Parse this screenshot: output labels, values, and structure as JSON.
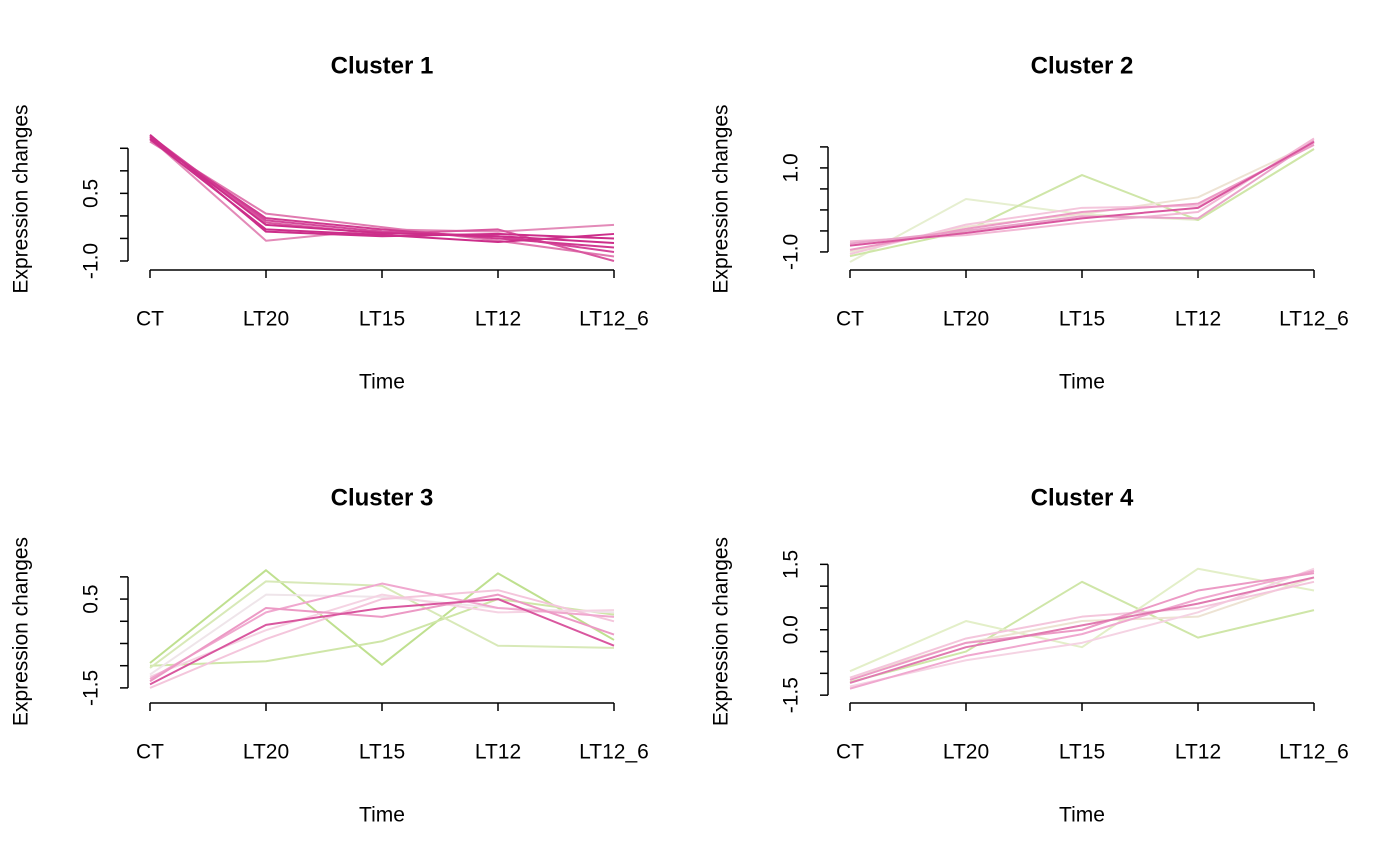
{
  "chart_data": [
    {
      "type": "line",
      "title": "Cluster 1",
      "xlabel": "Time",
      "ylabel": "Expression changes",
      "categories": [
        "CT",
        "LT20",
        "LT15",
        "LT12",
        "LT12_6"
      ],
      "ylim": [
        -1.2,
        1.95
      ],
      "yticks": [
        {
          "value": -1,
          "label": "-1.0"
        },
        0.5
      ],
      "yminor": [
        -0.5,
        0,
        1,
        1.5
      ],
      "series": [
        {
          "color": "#e38ab8",
          "values": [
            1.72,
            -0.55,
            -0.3,
            -0.35,
            -0.2
          ]
        },
        {
          "color": "#e07ab0",
          "values": [
            1.65,
            0.05,
            -0.25,
            -0.55,
            -0.9
          ]
        },
        {
          "color": "#d9579f",
          "values": [
            1.78,
            -0.15,
            -0.4,
            -0.3,
            -1.0
          ]
        },
        {
          "color": "#d4479a",
          "values": [
            1.75,
            -0.1,
            -0.35,
            -0.45,
            -0.8
          ]
        },
        {
          "color": "#d03a90",
          "values": [
            1.7,
            -0.05,
            -0.3,
            -0.5,
            -0.7
          ]
        },
        {
          "color": "#cc2e8a",
          "values": [
            1.8,
            -0.35,
            -0.45,
            -0.4,
            -0.5
          ]
        },
        {
          "color": "#cc2e8a",
          "values": [
            1.7,
            -0.3,
            -0.42,
            -0.58,
            -0.4
          ]
        },
        {
          "color": "#cc2e8a",
          "values": [
            1.75,
            -0.2,
            -0.38,
            -0.45,
            -0.6
          ]
        }
      ]
    },
    {
      "type": "line",
      "title": "Cluster 2",
      "xlabel": "Time",
      "ylabel": "Expression changes",
      "categories": [
        "CT",
        "LT20",
        "LT15",
        "LT12",
        "LT12_6"
      ],
      "ylim": [
        -1.43,
        1.95
      ],
      "yticks": [
        {
          "value": -1,
          "label": "-1.0"
        },
        {
          "value": 1,
          "label": "1.0"
        }
      ],
      "yminor": [
        -0.5,
        0,
        0.5,
        1.5
      ],
      "series": [
        {
          "color": "#e6efd0",
          "values": [
            -1.24,
            0.26,
            -0.1,
            -0.24,
            1.45
          ]
        },
        {
          "color": "#cfe6a8",
          "values": [
            -1.1,
            -0.5,
            0.83,
            -0.24,
            1.45
          ]
        },
        {
          "color": "#ede3d3",
          "values": [
            -1.0,
            -0.4,
            -0.1,
            0.3,
            1.6
          ]
        },
        {
          "color": "#f4c6dc",
          "values": [
            -1.05,
            -0.35,
            0.05,
            0.1,
            1.6
          ]
        },
        {
          "color": "#f2b8d5",
          "values": [
            -0.75,
            -0.6,
            -0.3,
            -0.05,
            1.7
          ]
        },
        {
          "color": "#e9a3c9",
          "values": [
            -0.8,
            -0.5,
            -0.15,
            -0.2,
            1.65
          ]
        },
        {
          "color": "#ec9ac5",
          "values": [
            -0.95,
            -0.45,
            -0.05,
            0.15,
            1.55
          ]
        },
        {
          "color": "#d9579f",
          "values": [
            -0.85,
            -0.55,
            -0.2,
            0.05,
            1.62
          ]
        }
      ]
    },
    {
      "type": "line",
      "title": "Cluster 3",
      "xlabel": "Time",
      "ylabel": "Expression changes",
      "categories": [
        "CT",
        "LT20",
        "LT15",
        "LT12",
        "LT12_6"
      ],
      "ylim": [
        -1.84,
        1.38
      ],
      "yticks": [
        -1.5,
        0.5
      ],
      "yminor": [
        -1,
        -0.5,
        0,
        1
      ],
      "series": [
        {
          "color": "#bfe08f",
          "values": [
            -0.94,
            1.15,
            -0.98,
            1.08,
            -0.42
          ]
        },
        {
          "color": "#cfe6a8",
          "values": [
            -1.0,
            -0.9,
            -0.45,
            0.5,
            0.15
          ]
        },
        {
          "color": "#d8e9b8",
          "values": [
            -1.05,
            0.9,
            0.8,
            -0.55,
            -0.6
          ]
        },
        {
          "color": "#efe5ea",
          "values": [
            -1.2,
            0.6,
            0.55,
            0.3,
            0.2
          ]
        },
        {
          "color": "#f5d3e3",
          "values": [
            -1.25,
            -0.2,
            0.6,
            0.2,
            0.25
          ]
        },
        {
          "color": "#f4c6dc",
          "values": [
            -1.5,
            -0.4,
            0.5,
            0.7,
            0.0
          ]
        },
        {
          "color": "#f0a8cf",
          "values": [
            -1.3,
            0.2,
            0.85,
            0.3,
            0.1
          ]
        },
        {
          "color": "#ec9ac5",
          "values": [
            -1.35,
            0.3,
            0.1,
            0.6,
            -0.3
          ]
        },
        {
          "color": "#d9579f",
          "values": [
            -1.42,
            -0.08,
            0.3,
            0.5,
            -0.55
          ]
        }
      ]
    },
    {
      "type": "line",
      "title": "Cluster 4",
      "xlabel": "Time",
      "ylabel": "Expression changes",
      "categories": [
        "CT",
        "LT20",
        "LT15",
        "LT12",
        "LT12_6"
      ],
      "ylim": [
        -1.68,
        1.6
      ],
      "yticks": [
        -1.5,
        {
          "value": 0,
          "label": "0.0"
        },
        1.5
      ],
      "yminor": [
        -1,
        -0.5,
        0.5,
        1
      ],
      "series": [
        {
          "color": "#cfe6a8",
          "values": [
            -1.2,
            -0.5,
            1.1,
            -0.18,
            0.45
          ]
        },
        {
          "color": "#e3efc8",
          "values": [
            -0.95,
            0.2,
            -0.4,
            1.4,
            0.9
          ]
        },
        {
          "color": "#ede3d3",
          "values": [
            -1.1,
            -0.3,
            0.2,
            0.3,
            1.2
          ]
        },
        {
          "color": "#f5d3e3",
          "values": [
            -1.3,
            -0.7,
            -0.3,
            0.4,
            1.4
          ]
        },
        {
          "color": "#f4c6dc",
          "values": [
            -1.1,
            -0.2,
            0.3,
            0.5,
            1.1
          ]
        },
        {
          "color": "#f0a8cf",
          "values": [
            -1.35,
            -0.6,
            -0.1,
            0.7,
            1.35
          ]
        },
        {
          "color": "#ec9ac5",
          "values": [
            -1.15,
            -0.3,
            0.0,
            0.9,
            1.3
          ]
        },
        {
          "color": "#e07ab0",
          "values": [
            -1.22,
            -0.4,
            0.1,
            0.6,
            1.2
          ]
        }
      ]
    }
  ]
}
